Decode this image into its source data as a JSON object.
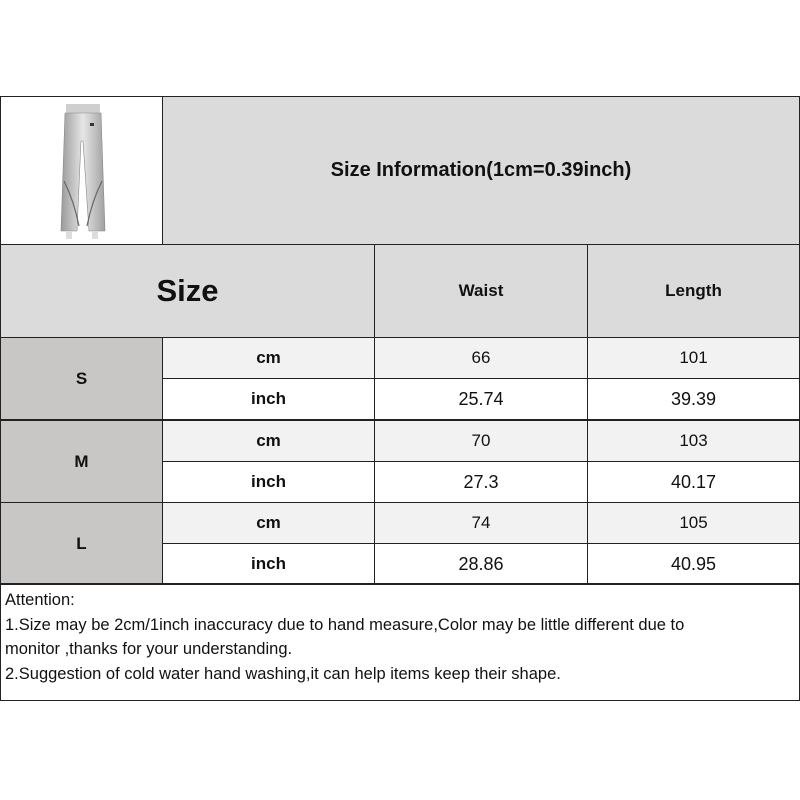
{
  "title": "Size Information(1cm=0.39inch)",
  "header": {
    "size": "Size",
    "waist": "Waist",
    "length": "Length"
  },
  "product_image": "pants-icon",
  "rows": [
    {
      "size": "S",
      "cm": {
        "unit": "cm",
        "waist": "66",
        "length": "101"
      },
      "inch": {
        "unit": "inch",
        "waist": "25.74",
        "length": "39.39"
      }
    },
    {
      "size": "M",
      "cm": {
        "unit": "cm",
        "waist": "70",
        "length": "103"
      },
      "inch": {
        "unit": "inch",
        "waist": "27.3",
        "length": "40.17"
      }
    },
    {
      "size": "L",
      "cm": {
        "unit": "cm",
        "waist": "74",
        "length": "105"
      },
      "inch": {
        "unit": "inch",
        "waist": "28.86",
        "length": "40.95"
      }
    }
  ],
  "notes": {
    "heading": "Attention:",
    "line1": "1.Size may be 2cm/1inch inaccuracy due to hand measure,Color may be little different due to",
    "line1b": "monitor ,thanks for your understanding.",
    "line2": "2.Suggestion of cold water hand washing,it can help items keep their shape."
  },
  "colors": {
    "header_bg": "#dcdbdb",
    "size_bg": "#c9c6c6",
    "cm_row_bg": "#f2f2f2",
    "border": "#222222"
  }
}
